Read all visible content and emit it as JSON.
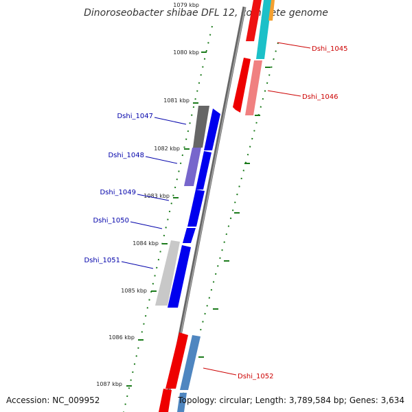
{
  "title": "Dinoroseobacter shibae DFL 12, complete genome",
  "footer": {
    "accession": "Accession: NC_009952",
    "topology": "Topology: circular; Length: 3,789,584 bp; Genes: 3,634"
  },
  "colors": {
    "forward_strand": "#0000ee",
    "reverse_strand": "#ee0000",
    "reverse_label": "#cc0000",
    "forward_label": "#0000aa",
    "tick": "#1a7a1a",
    "backbone": "#888888"
  },
  "tick_labels": [
    "1079 kbp",
    "1080 kbp",
    "1081 kbp",
    "1082 kbp",
    "1083 kbp",
    "1084 kbp",
    "1085 kbp",
    "1086 kbp",
    "1087 kbp"
  ],
  "genes": [
    {
      "label": "Dshi_1045",
      "strand": "reverse"
    },
    {
      "label": "Dshi_1046",
      "strand": "reverse"
    },
    {
      "label": "Dshi_1047",
      "strand": "forward"
    },
    {
      "label": "Dshi_1048",
      "strand": "forward"
    },
    {
      "label": "Dshi_1049",
      "strand": "forward"
    },
    {
      "label": "Dshi_1050",
      "strand": "forward"
    },
    {
      "label": "Dshi_1051",
      "strand": "forward"
    },
    {
      "label": "Dshi_1052",
      "strand": "reverse"
    }
  ]
}
